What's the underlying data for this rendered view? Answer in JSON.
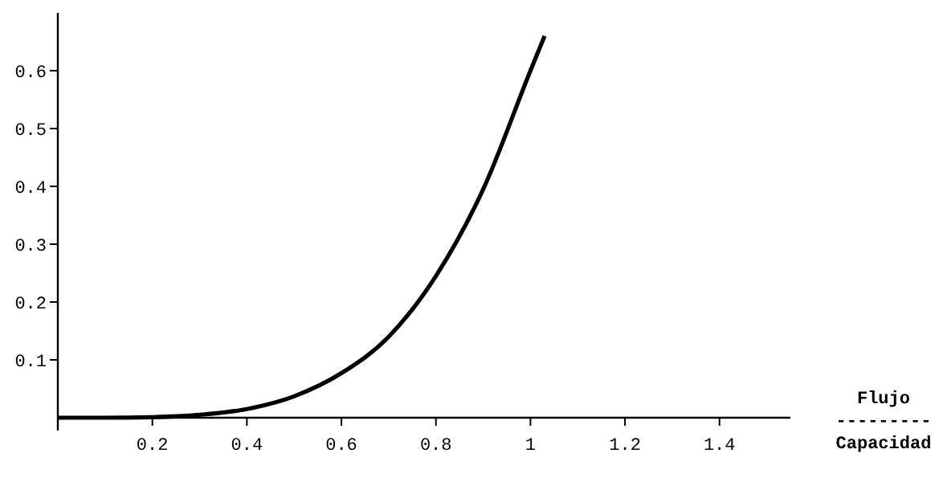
{
  "chart_data": {
    "type": "line",
    "xlabel": "Flujo\n---------\nCapacidad",
    "x": [
      0,
      0.1,
      0.2,
      0.3,
      0.4,
      0.5,
      0.6,
      0.7,
      0.8,
      0.9,
      1.0,
      1.03
    ],
    "series": [
      {
        "color": "#000000",
        "values": [
          0,
          0,
          0.001,
          0.005,
          0.015,
          0.037,
          0.077,
          0.14,
          0.245,
          0.395,
          0.6,
          0.66
        ]
      }
    ],
    "xlim": [
      0,
      1.55
    ],
    "ylim": [
      0,
      0.7
    ],
    "xticks": [
      0.2,
      0.4,
      0.6,
      0.8,
      1,
      1.2,
      1.4
    ],
    "yticks": [
      0.1,
      0.2,
      0.3,
      0.4,
      0.5,
      0.6
    ],
    "grid": false,
    "marker": "none",
    "line_style": "solid"
  }
}
